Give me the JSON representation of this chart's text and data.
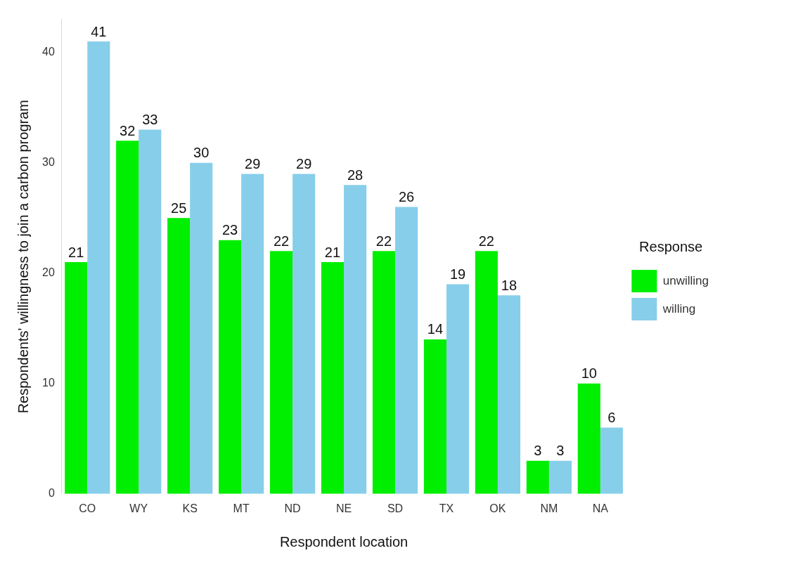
{
  "chart_data": {
    "type": "bar",
    "xlabel": "Respondent location",
    "ylabel": "Respondents' willingness to join a carbon program",
    "legend_title": "Response",
    "categories": [
      "CO",
      "WY",
      "KS",
      "MT",
      "ND",
      "NE",
      "SD",
      "TX",
      "OK",
      "NM",
      "NA"
    ],
    "series": [
      {
        "name": "unwilling",
        "color": "#00ee00",
        "values": [
          21,
          32,
          25,
          23,
          22,
          21,
          22,
          14,
          22,
          3,
          10
        ]
      },
      {
        "name": "willing",
        "color": "#87ceeb",
        "values": [
          41,
          33,
          30,
          29,
          29,
          28,
          26,
          19,
          18,
          3,
          6
        ]
      }
    ],
    "ylim": [
      0,
      43
    ],
    "yticks": [
      0,
      10,
      20,
      30,
      40
    ],
    "grid": false,
    "legend": "right",
    "data_labels": true
  }
}
